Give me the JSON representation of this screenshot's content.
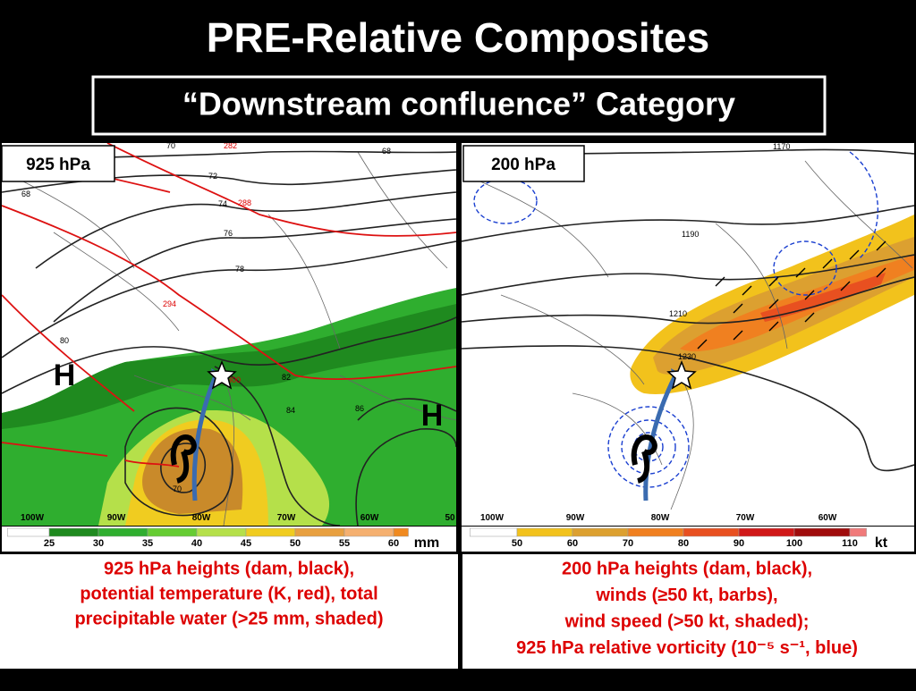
{
  "title": "PRE-Relative Composites",
  "subtitle": "“Downstream confluence” Category",
  "panels": [
    {
      "label": "925 hPa",
      "highs": [
        "H",
        "H"
      ],
      "height_labels": [
        70,
        68,
        68,
        72,
        74,
        76,
        78,
        80,
        82,
        84,
        86,
        70
      ],
      "theta_labels": [
        282,
        288,
        294,
        300
      ],
      "longitudes": [
        "100W",
        "90W",
        "80W",
        "70W",
        "60W",
        "50"
      ],
      "colorbar": {
        "levels": [
          25,
          30,
          35,
          40,
          45,
          50,
          55,
          60
        ],
        "unit": "mm",
        "colors": [
          "#ffffff",
          "#1f8a1f",
          "#2fae2f",
          "#66cc33",
          "#b5e04a",
          "#f0cc20",
          "#e8a040",
          "#f5b070",
          "#f08a20"
        ]
      },
      "caption": [
        "925 hPa heights (dam, black),",
        "potential temperature (K, red), total",
        "precipitable water (>25 mm, shaded)"
      ]
    },
    {
      "label": "200 hPa",
      "height_labels": [
        1170,
        1190,
        1210,
        1230
      ],
      "longitudes": [
        "100W",
        "90W",
        "80W",
        "70W",
        "60W"
      ],
      "colorbar": {
        "levels": [
          50,
          60,
          70,
          80,
          90,
          100,
          110
        ],
        "unit": "kt",
        "colors": [
          "#ffffff",
          "#f2c21c",
          "#dca030",
          "#f08020",
          "#e85020",
          "#d01818",
          "#a00c0c",
          "#f07a7a"
        ]
      },
      "caption": [
        "200 hPa heights (dam, black),",
        "winds (≥50 kt, barbs),",
        "wind speed (>50 kt, shaded);",
        "925 hPa relative vorticity (10⁻⁵ s⁻¹, blue)"
      ]
    }
  ]
}
